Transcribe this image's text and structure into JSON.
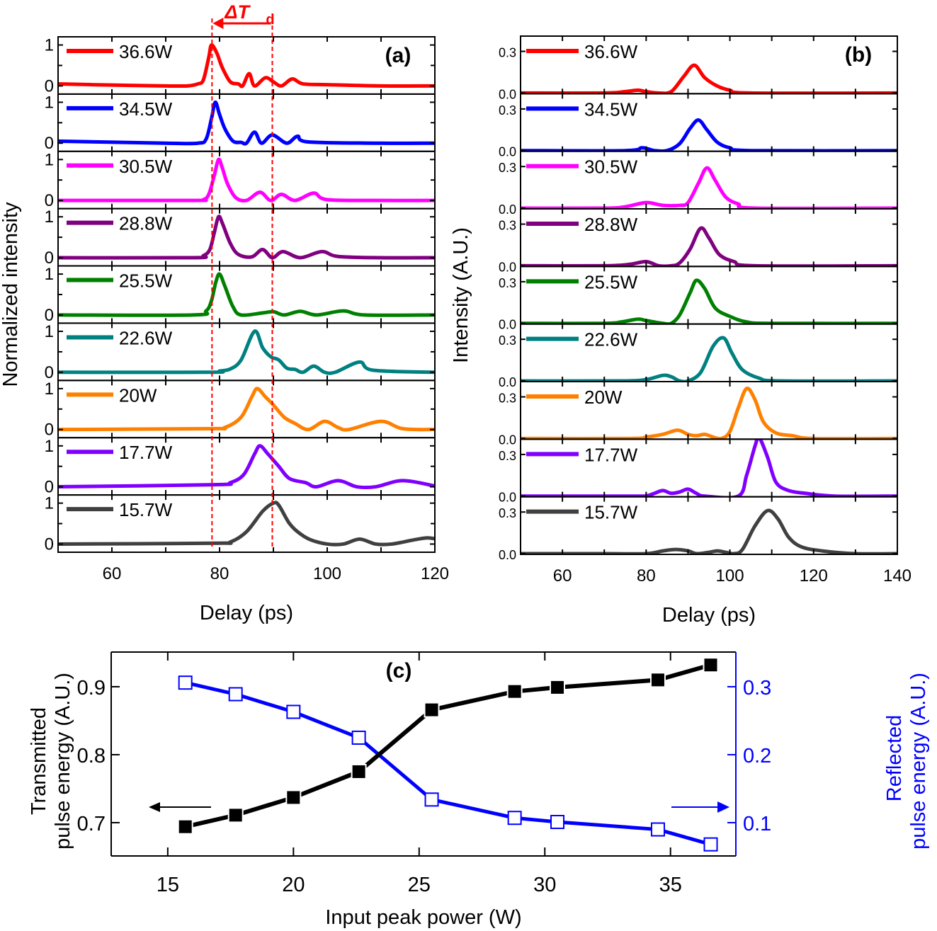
{
  "figure": {
    "annotation": {
      "main": "ΔT",
      "sub": "d",
      "color": "#ff0000",
      "dashed_x": [
        78.6,
        89.8
      ]
    }
  },
  "chart_data": [
    {
      "id": "a",
      "type": "line",
      "panel_label": "(a)",
      "title": "",
      "xlabel": "Delay (ps)",
      "ylabel": "Normalized intensity",
      "xlim": [
        50,
        120
      ],
      "ylim": [
        -0.2,
        1.2
      ],
      "xticks": [
        60,
        80,
        100,
        120
      ],
      "xtick_labels": [
        "60",
        "80",
        "100",
        "120"
      ],
      "yticks": [
        0,
        1
      ],
      "ytick_labels": [
        "0",
        "1"
      ],
      "stacked": true,
      "grid": false,
      "legend_position": "top-left of each subplot",
      "series": [
        {
          "name": "36.6W",
          "color": "#ff0000",
          "x": [
            50,
            60,
            70,
            74,
            76,
            77,
            78,
            78.5,
            79.5,
            80.5,
            82,
            83.5,
            84.3,
            85.5,
            86.5,
            88.5,
            90,
            91.5,
            93.5,
            95.5,
            100,
            110,
            120
          ],
          "y": [
            0.05,
            0.02,
            0.0,
            0.0,
            0.05,
            0.15,
            0.7,
            1.0,
            0.8,
            0.45,
            0.1,
            0.05,
            0.0,
            0.3,
            0.0,
            0.2,
            0.1,
            0.0,
            0.17,
            0.05,
            0.03,
            0.0,
            0.0
          ]
        },
        {
          "name": "34.5W",
          "color": "#0000ff",
          "x": [
            50,
            70,
            76,
            77.5,
            78.5,
            79.2,
            80,
            81,
            82.5,
            84,
            85,
            86.5,
            87.8,
            89.8,
            92.5,
            94.5,
            96.5,
            110,
            120
          ],
          "y": [
            0.05,
            0.0,
            0.0,
            0.1,
            0.6,
            1.0,
            0.7,
            0.35,
            0.05,
            0.02,
            0.0,
            0.27,
            0.0,
            0.2,
            0.0,
            0.17,
            0.03,
            0.0,
            0.0
          ]
        },
        {
          "name": "30.5W",
          "color": "#ff00ff",
          "x": [
            50,
            75,
            77,
            78,
            79,
            79.8,
            80.5,
            81.5,
            83,
            85,
            87.5,
            89.5,
            91.5,
            94,
            97.5,
            100,
            110,
            120
          ],
          "y": [
            0.0,
            0.0,
            0.02,
            0.15,
            0.6,
            1.0,
            0.8,
            0.4,
            0.07,
            0.0,
            0.2,
            0.0,
            0.15,
            0.0,
            0.18,
            0.02,
            0.0,
            0.0
          ]
        },
        {
          "name": "28.8W",
          "color": "#800080",
          "x": [
            50,
            75,
            77,
            78.2,
            79,
            79.8,
            80.5,
            82,
            83.5,
            86,
            88,
            89.8,
            91.8,
            95,
            99,
            102,
            110,
            120
          ],
          "y": [
            0.0,
            0.0,
            0.05,
            0.2,
            0.6,
            1.0,
            0.85,
            0.35,
            0.08,
            0.02,
            0.2,
            0.0,
            0.15,
            0.0,
            0.15,
            0.03,
            0.0,
            0.0
          ]
        },
        {
          "name": "25.5W",
          "color": "#008000",
          "x": [
            50,
            75,
            77.5,
            78.5,
            79.3,
            80,
            81,
            82.5,
            84,
            88,
            90,
            92,
            95,
            98,
            103,
            107,
            120
          ],
          "y": [
            0.0,
            0.0,
            0.1,
            0.35,
            0.8,
            1.0,
            0.7,
            0.2,
            0.0,
            0.05,
            0.08,
            0.0,
            0.09,
            0.0,
            0.1,
            0.0,
            0.0
          ]
        },
        {
          "name": "22.6W",
          "color": "#008080",
          "x": [
            50,
            78,
            80,
            82,
            84,
            86.5,
            88,
            89.5,
            91,
            92.5,
            94,
            95.5,
            97.5,
            99.5,
            101.5,
            106,
            108.5,
            120
          ],
          "y": [
            0.0,
            0.0,
            0.03,
            0.08,
            0.3,
            1.0,
            0.6,
            0.38,
            0.3,
            0.1,
            0.07,
            0.0,
            0.15,
            0.0,
            0.0,
            0.25,
            0.05,
            0.0
          ]
        },
        {
          "name": "20W",
          "color": "#ff8000",
          "x": [
            50,
            78,
            81,
            84,
            86,
            87,
            88.5,
            90,
            92,
            94,
            96.5,
            99.5,
            102,
            104,
            110,
            114,
            120
          ],
          "y": [
            0.0,
            0.02,
            0.05,
            0.3,
            0.8,
            1.0,
            0.8,
            0.6,
            0.3,
            0.15,
            0.0,
            0.2,
            0.05,
            0.0,
            0.2,
            0.02,
            0.0
          ]
        },
        {
          "name": "17.7W",
          "color": "#8000ff",
          "x": [
            50,
            79,
            82,
            84.5,
            86.5,
            87.5,
            89,
            91,
            93,
            96,
            98,
            102,
            105.5,
            109,
            114,
            120
          ],
          "y": [
            0.0,
            0.05,
            0.1,
            0.3,
            0.8,
            1.0,
            0.8,
            0.5,
            0.2,
            0.1,
            0.0,
            0.15,
            0.0,
            0.0,
            0.15,
            0.02
          ]
        },
        {
          "name": "15.7W",
          "color": "#404040",
          "x": [
            50,
            79,
            82,
            85,
            88,
            90,
            91,
            93,
            95,
            97,
            100,
            103,
            106,
            109,
            112,
            116,
            118.5,
            120
          ],
          "y": [
            0.0,
            0.02,
            0.05,
            0.3,
            0.8,
            1.0,
            0.95,
            0.5,
            0.25,
            0.1,
            0.0,
            0.0,
            0.12,
            0.0,
            0.0,
            0.1,
            0.15,
            0.13
          ]
        }
      ]
    },
    {
      "id": "b",
      "type": "line",
      "panel_label": "(b)",
      "title": "",
      "xlabel": "Delay (ps)",
      "ylabel": "Intensity (A.U.)",
      "xlim": [
        50,
        140
      ],
      "ylim": [
        -0.005,
        0.41
      ],
      "xticks": [
        60,
        80,
        100,
        120,
        140
      ],
      "xtick_labels": [
        "60",
        "80",
        "100",
        "120",
        "140"
      ],
      "yticks": [
        0.0,
        0.3
      ],
      "ytick_labels": [
        "0.0",
        "0.3"
      ],
      "stacked": true,
      "grid": false,
      "legend_position": "top-left of each subplot",
      "series": [
        {
          "name": "36.6W",
          "color": "#ff0000",
          "x": [
            50,
            70,
            75,
            78,
            80,
            83,
            86,
            89,
            91.5,
            94,
            97,
            100,
            105,
            140
          ],
          "y": [
            0,
            0,
            0.01,
            0.02,
            0.01,
            0,
            0.01,
            0.12,
            0.2,
            0.11,
            0.05,
            0.02,
            0,
            0
          ]
        },
        {
          "name": "34.5W",
          "color": "#0000ff",
          "x": [
            50,
            75,
            79,
            82,
            85,
            88,
            90.5,
            92.5,
            94.5,
            97,
            100,
            105,
            140
          ],
          "y": [
            0,
            0,
            0.02,
            0,
            0,
            0.05,
            0.16,
            0.22,
            0.15,
            0.06,
            0.02,
            0,
            0
          ]
        },
        {
          "name": "30.5W",
          "color": "#ff00ff",
          "x": [
            50,
            70,
            75,
            80,
            84,
            88,
            90,
            92.5,
            94.5,
            96.5,
            99,
            102,
            106,
            140
          ],
          "y": [
            0,
            0,
            0.01,
            0.04,
            0.02,
            0.02,
            0.04,
            0.18,
            0.29,
            0.2,
            0.08,
            0.03,
            0,
            0
          ]
        },
        {
          "name": "28.8W",
          "color": "#800080",
          "x": [
            50,
            70,
            76,
            80,
            83,
            86,
            88,
            90.5,
            93,
            95,
            97.5,
            101,
            106,
            140
          ],
          "y": [
            0,
            0,
            0.01,
            0.03,
            0,
            0,
            0.02,
            0.12,
            0.27,
            0.2,
            0.08,
            0.03,
            0,
            0
          ]
        },
        {
          "name": "25.5W",
          "color": "#008000",
          "x": [
            50,
            70,
            74,
            78,
            80,
            84,
            86,
            88,
            90.5,
            92,
            94,
            96.5,
            100,
            104,
            110,
            140
          ],
          "y": [
            0,
            0,
            0.01,
            0.03,
            0.02,
            0,
            0,
            0.06,
            0.22,
            0.31,
            0.25,
            0.11,
            0.05,
            0.01,
            0,
            0
          ]
        },
        {
          "name": "22.6W",
          "color": "#008080",
          "x": [
            50,
            74,
            80,
            84,
            86,
            88,
            90,
            93,
            96,
            98.5,
            100.5,
            103,
            107,
            112,
            140
          ],
          "y": [
            0,
            0,
            0.01,
            0.04,
            0.03,
            0,
            0,
            0.06,
            0.25,
            0.31,
            0.2,
            0.08,
            0.02,
            0,
            0
          ]
        },
        {
          "name": "20W",
          "color": "#ff8000",
          "x": [
            50,
            76,
            80,
            84,
            87.5,
            90,
            92,
            94,
            96,
            98,
            100,
            102,
            104,
            106,
            108,
            111,
            115,
            120,
            140
          ],
          "y": [
            0,
            0,
            0.01,
            0.03,
            0.06,
            0.03,
            0.02,
            0.03,
            0.01,
            0,
            0.05,
            0.22,
            0.36,
            0.28,
            0.12,
            0.04,
            0.02,
            0,
            0
          ]
        },
        {
          "name": "17.7W",
          "color": "#8000ff",
          "x": [
            50,
            78,
            80,
            82,
            84,
            86,
            88,
            90,
            92,
            94,
            102,
            104,
            106,
            107,
            109,
            111,
            114,
            118,
            125,
            140
          ],
          "y": [
            0,
            0,
            0,
            0.02,
            0.04,
            0.02,
            0.03,
            0.05,
            0.02,
            0,
            0,
            0.15,
            0.36,
            0.42,
            0.28,
            0.1,
            0.04,
            0.02,
            0,
            0
          ]
        },
        {
          "name": "15.7W",
          "color": "#404040",
          "x": [
            50,
            70,
            80,
            84,
            87,
            90,
            92,
            95,
            97,
            99,
            101,
            103,
            106,
            109,
            111.5,
            114,
            117,
            122,
            130,
            140
          ],
          "y": [
            0,
            0,
            0,
            0.02,
            0.03,
            0.02,
            0,
            0.01,
            0.02,
            0.01,
            0,
            0.03,
            0.2,
            0.31,
            0.25,
            0.12,
            0.05,
            0.02,
            0,
            0
          ]
        }
      ]
    },
    {
      "id": "c",
      "type": "line",
      "panel_label": "(c)",
      "title": "",
      "xlabel": "Input peak power (W)",
      "ylabel": "Transmitted\npulse energy (A.U.)",
      "ylabel_lines": [
        "Transmitted",
        "pulse energy (A.U.)"
      ],
      "y2label_lines": [
        "Reflected",
        "pulse energy (A.U.)"
      ],
      "xlim": [
        12.75,
        37.6
      ],
      "ylim": [
        0.651,
        0.951
      ],
      "y2lim": [
        0.051,
        0.351
      ],
      "xticks": [
        15,
        20,
        25,
        30,
        35
      ],
      "xtick_labels": [
        "15",
        "20",
        "25",
        "30",
        "35"
      ],
      "yticks": [
        0.7,
        0.8,
        0.9
      ],
      "ytick_labels": [
        "0.7",
        "0.8",
        "0.9"
      ],
      "y2ticks": [
        0.1,
        0.2,
        0.3
      ],
      "y2tick_labels": [
        "0.1",
        "0.2",
        "0.3"
      ],
      "grid": false,
      "legend_position": "none (arrows indicate axes)",
      "x": [
        15.7,
        17.7,
        20,
        22.6,
        25.5,
        28.8,
        30.5,
        34.5,
        36.6
      ],
      "series": [
        {
          "name": "Transmitted pulse energy",
          "axis": "left",
          "marker": "filled-square",
          "color": "#000000",
          "values": [
            0.694,
            0.711,
            0.737,
            0.775,
            0.866,
            0.893,
            0.899,
            0.91,
            0.932
          ]
        },
        {
          "name": "Reflected pulse energy",
          "axis": "right",
          "marker": "open-square",
          "color": "#0000ff",
          "values": [
            0.306,
            0.289,
            0.263,
            0.225,
            0.134,
            0.107,
            0.101,
            0.09,
            0.068
          ]
        }
      ],
      "arrows": [
        {
          "direction": "left",
          "points_to": "left axis",
          "color": "#000000"
        },
        {
          "direction": "right",
          "points_to": "right axis",
          "color": "#0000ff"
        }
      ]
    }
  ]
}
